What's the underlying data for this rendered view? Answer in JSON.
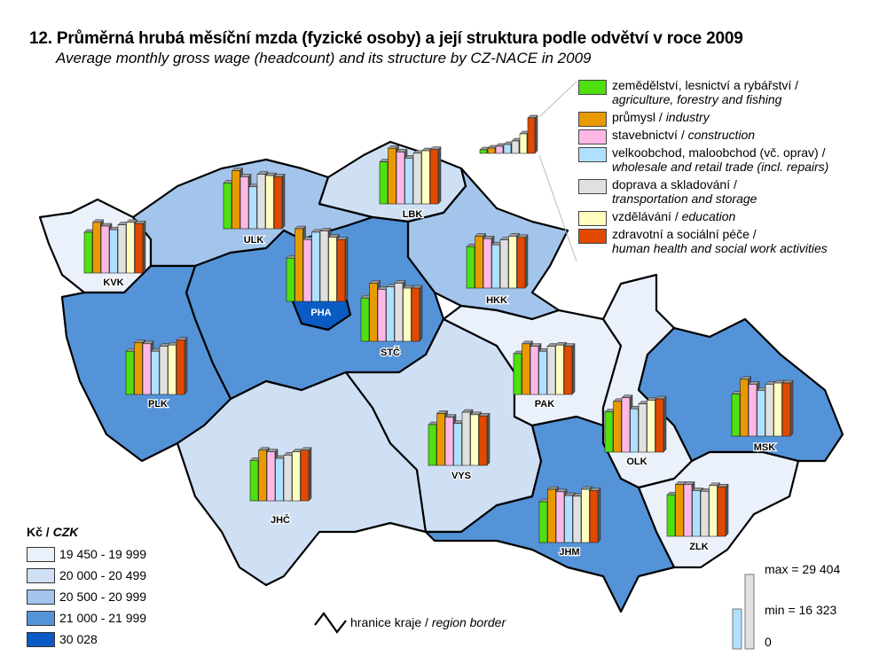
{
  "title": "12. Průměrná hrubá měsíční mzda (fyzické osoby) a její struktura podle odvětví v roce 2009",
  "subtitle": "Average monthly gross wage (headcount) and its structure by CZ-NACE in 2009",
  "sectors": [
    {
      "cz": "zemědělství, lesnictví a rybářství /",
      "en": "agriculture, forestry and fishing",
      "color": "#4fe010"
    },
    {
      "cz": "průmysl /",
      "en": "industry",
      "color": "#e89a00",
      "inline": true
    },
    {
      "cz": "stavebnictví /",
      "en": "construction",
      "color": "#ffb8e6",
      "inline": true
    },
    {
      "cz": "velkoobchod, maloobchod (vč. oprav) /",
      "en": "wholesale and retail trade (incl. repairs)",
      "color": "#b0e0ff"
    },
    {
      "cz": "doprava a skladování /",
      "en": "transportation and storage",
      "color": "#e0e0e0"
    },
    {
      "cz": "vzdělávání /",
      "en": "education",
      "color": "#ffffc0",
      "inline": true
    },
    {
      "cz": "zdravotní a sociální péče /",
      "en": "human health and social work activities",
      "color": "#e04a00"
    }
  ],
  "choropleth_legend": {
    "unit_cz": "Kč",
    "unit_en": "CZK",
    "classes": [
      {
        "label": "19 450 - 19 999",
        "color": "#eaf1fb"
      },
      {
        "label": "20 000 - 20 499",
        "color": "#cfe0f5"
      },
      {
        "label": "20 500 - 20 999",
        "color": "#a3c5ec"
      },
      {
        "label": "21 000 - 21 999",
        "color": "#5593d8"
      },
      {
        "label": "30 028",
        "color": "#0a5cc4"
      }
    ]
  },
  "border_legend": {
    "cz": "hranice kraje /",
    "en": "region border"
  },
  "scale": {
    "max_label": "max = 29 404",
    "min_label": "min = 16 323",
    "zero_label": "0",
    "max": 29404,
    "min": 16323
  },
  "chart_data": {
    "type": "map-bar",
    "series": [
      "agriculture, forestry and fishing",
      "industry",
      "construction",
      "wholesale and retail trade (incl. repairs)",
      "transportation and storage",
      "education",
      "human health and social work activities"
    ],
    "regions": [
      {
        "code": "KVK",
        "class": 0,
        "values": [
          16500,
          20500,
          19000,
          17500,
          19500,
          20500,
          20000
        ]
      },
      {
        "code": "ULK",
        "class": 2,
        "values": [
          18500,
          23500,
          21000,
          17000,
          22000,
          21500,
          21000
        ]
      },
      {
        "code": "LBK",
        "class": 1,
        "values": [
          17000,
          22500,
          21000,
          18500,
          20500,
          21500,
          22000
        ]
      },
      {
        "code": "HKK",
        "class": 2,
        "values": [
          16800,
          21000,
          20000,
          17500,
          19500,
          21000,
          20500
        ]
      },
      {
        "code": "STČ",
        "class": 3,
        "values": [
          17500,
          23500,
          21000,
          22000,
          23500,
          21500,
          21500
        ]
      },
      {
        "code": "PHA",
        "class": 4,
        "values": [
          17500,
          29404,
          25000,
          28000,
          28500,
          26000,
          25000
        ]
      },
      {
        "code": "PLK",
        "class": 3,
        "values": [
          17500,
          21000,
          20500,
          17500,
          19500,
          20000,
          22000
        ]
      },
      {
        "code": "JHČ",
        "class": 1,
        "values": [
          16400,
          20500,
          19800,
          17200,
          18500,
          19800,
          20500
        ]
      },
      {
        "code": "VYS",
        "class": 1,
        "values": [
          16500,
          21000,
          19500,
          17000,
          21500,
          20500,
          20000
        ]
      },
      {
        "code": "PAK",
        "class": 0,
        "values": [
          16500,
          20500,
          19500,
          17500,
          19500,
          20000,
          19500
        ]
      },
      {
        "code": "OLK",
        "class": 0,
        "values": [
          16323,
          20500,
          22000,
          17500,
          19500,
          21000,
          21500
        ]
      },
      {
        "code": "MSK",
        "class": 3,
        "values": [
          17000,
          23000,
          21000,
          18500,
          21000,
          21500,
          21500
        ]
      },
      {
        "code": "ZLK",
        "class": 0,
        "values": [
          16800,
          21000,
          21000,
          18500,
          18200,
          20500,
          20000
        ]
      },
      {
        "code": "JHM",
        "class": 3,
        "values": [
          16500,
          21500,
          20500,
          19000,
          18800,
          21500,
          21000
        ]
      }
    ]
  }
}
